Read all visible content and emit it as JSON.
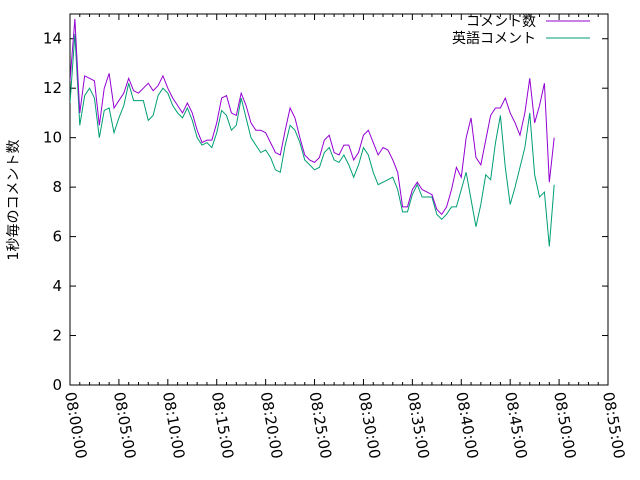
{
  "chart_data": {
    "type": "line",
    "xlabel": "",
    "ylabel": "1秒毎のコメント数",
    "xlim": [
      "08:00:00",
      "08:55:00"
    ],
    "ylim": [
      0,
      15
    ],
    "xticks": [
      "08:00:00",
      "08:05:00",
      "08:10:00",
      "08:15:00",
      "08:20:00",
      "08:25:00",
      "08:30:00",
      "08:35:00",
      "08:40:00",
      "08:45:00",
      "08:50:00",
      "08:55:00"
    ],
    "yticks": [
      0,
      2,
      4,
      6,
      8,
      10,
      12,
      14
    ],
    "grid": false,
    "legend_position": "top-right",
    "series": [
      {
        "name": "コメント数",
        "color": "#9400d3",
        "points": [
          [
            "08:00:00",
            12.3
          ],
          [
            "08:00:30",
            14.8
          ],
          [
            "08:01:00",
            11.0
          ],
          [
            "08:01:30",
            12.5
          ],
          [
            "08:02:00",
            12.4
          ],
          [
            "08:02:30",
            12.3
          ],
          [
            "08:03:00",
            10.5
          ],
          [
            "08:03:30",
            12.0
          ],
          [
            "08:04:00",
            12.6
          ],
          [
            "08:04:30",
            11.2
          ],
          [
            "08:05:00",
            11.5
          ],
          [
            "08:05:30",
            11.8
          ],
          [
            "08:06:00",
            12.4
          ],
          [
            "08:06:30",
            11.9
          ],
          [
            "08:07:00",
            11.8
          ],
          [
            "08:07:30",
            12.0
          ],
          [
            "08:08:00",
            12.2
          ],
          [
            "08:08:30",
            11.9
          ],
          [
            "08:09:00",
            12.1
          ],
          [
            "08:09:30",
            12.5
          ],
          [
            "08:10:00",
            12.0
          ],
          [
            "08:10:30",
            11.6
          ],
          [
            "08:11:00",
            11.3
          ],
          [
            "08:11:30",
            11.0
          ],
          [
            "08:12:00",
            11.4
          ],
          [
            "08:12:30",
            11.0
          ],
          [
            "08:13:00",
            10.3
          ],
          [
            "08:13:30",
            9.8
          ],
          [
            "08:14:00",
            9.9
          ],
          [
            "08:14:30",
            9.9
          ],
          [
            "08:15:00",
            10.6
          ],
          [
            "08:15:30",
            11.6
          ],
          [
            "08:16:00",
            11.7
          ],
          [
            "08:16:30",
            11.0
          ],
          [
            "08:17:00",
            10.9
          ],
          [
            "08:17:30",
            11.8
          ],
          [
            "08:18:00",
            11.3
          ],
          [
            "08:18:30",
            10.6
          ],
          [
            "08:19:00",
            10.3
          ],
          [
            "08:19:30",
            10.3
          ],
          [
            "08:20:00",
            10.2
          ],
          [
            "08:20:30",
            9.8
          ],
          [
            "08:21:00",
            9.4
          ],
          [
            "08:21:30",
            9.3
          ],
          [
            "08:22:00",
            10.3
          ],
          [
            "08:22:30",
            11.2
          ],
          [
            "08:23:00",
            10.8
          ],
          [
            "08:23:30",
            10.0
          ],
          [
            "08:24:00",
            9.3
          ],
          [
            "08:24:30",
            9.1
          ],
          [
            "08:25:00",
            9.0
          ],
          [
            "08:25:30",
            9.2
          ],
          [
            "08:26:00",
            9.9
          ],
          [
            "08:26:30",
            10.1
          ],
          [
            "08:27:00",
            9.4
          ],
          [
            "08:27:30",
            9.3
          ],
          [
            "08:28:00",
            9.7
          ],
          [
            "08:28:30",
            9.7
          ],
          [
            "08:29:00",
            9.1
          ],
          [
            "08:29:30",
            9.4
          ],
          [
            "08:30:00",
            10.1
          ],
          [
            "08:30:30",
            10.3
          ],
          [
            "08:31:00",
            9.8
          ],
          [
            "08:31:30",
            9.3
          ],
          [
            "08:32:00",
            9.6
          ],
          [
            "08:32:30",
            9.5
          ],
          [
            "08:33:00",
            9.1
          ],
          [
            "08:33:30",
            8.6
          ],
          [
            "08:34:00",
            7.2
          ],
          [
            "08:34:30",
            7.2
          ],
          [
            "08:35:00",
            7.9
          ],
          [
            "08:35:30",
            8.2
          ],
          [
            "08:36:00",
            7.9
          ],
          [
            "08:36:30",
            7.8
          ],
          [
            "08:37:00",
            7.7
          ],
          [
            "08:37:30",
            7.1
          ],
          [
            "08:38:00",
            6.9
          ],
          [
            "08:38:30",
            7.2
          ],
          [
            "08:39:00",
            7.9
          ],
          [
            "08:39:30",
            8.8
          ],
          [
            "08:40:00",
            8.4
          ],
          [
            "08:40:30",
            10.0
          ],
          [
            "08:41:00",
            10.8
          ],
          [
            "08:41:30",
            9.2
          ],
          [
            "08:42:00",
            8.9
          ],
          [
            "08:42:30",
            9.9
          ],
          [
            "08:43:00",
            10.9
          ],
          [
            "08:43:30",
            11.2
          ],
          [
            "08:44:00",
            11.2
          ],
          [
            "08:44:30",
            11.6
          ],
          [
            "08:45:00",
            11.0
          ],
          [
            "08:45:30",
            10.6
          ],
          [
            "08:46:00",
            10.1
          ],
          [
            "08:46:30",
            11.0
          ],
          [
            "08:47:00",
            12.4
          ],
          [
            "08:47:30",
            10.6
          ],
          [
            "08:48:00",
            11.3
          ],
          [
            "08:48:30",
            12.2
          ],
          [
            "08:49:00",
            8.2
          ],
          [
            "08:49:30",
            10.0
          ]
        ]
      },
      {
        "name": "英語コメント",
        "color": "#009e73",
        "points": [
          [
            "08:00:00",
            11.4
          ],
          [
            "08:00:30",
            14.2
          ],
          [
            "08:01:00",
            10.5
          ],
          [
            "08:01:30",
            11.7
          ],
          [
            "08:02:00",
            12.0
          ],
          [
            "08:02:30",
            11.6
          ],
          [
            "08:03:00",
            10.0
          ],
          [
            "08:03:30",
            11.1
          ],
          [
            "08:04:00",
            11.2
          ],
          [
            "08:04:30",
            10.2
          ],
          [
            "08:05:00",
            10.8
          ],
          [
            "08:05:30",
            11.3
          ],
          [
            "08:06:00",
            12.2
          ],
          [
            "08:06:30",
            11.5
          ],
          [
            "08:07:00",
            11.5
          ],
          [
            "08:07:30",
            11.5
          ],
          [
            "08:08:00",
            10.7
          ],
          [
            "08:08:30",
            10.9
          ],
          [
            "08:09:00",
            11.7
          ],
          [
            "08:09:30",
            12.0
          ],
          [
            "08:10:00",
            11.8
          ],
          [
            "08:10:30",
            11.3
          ],
          [
            "08:11:00",
            11.0
          ],
          [
            "08:11:30",
            10.8
          ],
          [
            "08:12:00",
            11.2
          ],
          [
            "08:12:30",
            10.7
          ],
          [
            "08:13:00",
            10.0
          ],
          [
            "08:13:30",
            9.7
          ],
          [
            "08:14:00",
            9.8
          ],
          [
            "08:14:30",
            9.6
          ],
          [
            "08:15:00",
            10.2
          ],
          [
            "08:15:30",
            11.1
          ],
          [
            "08:16:00",
            10.9
          ],
          [
            "08:16:30",
            10.3
          ],
          [
            "08:17:00",
            10.5
          ],
          [
            "08:17:30",
            11.6
          ],
          [
            "08:18:00",
            10.8
          ],
          [
            "08:18:30",
            10.0
          ],
          [
            "08:19:00",
            9.7
          ],
          [
            "08:19:30",
            9.4
          ],
          [
            "08:20:00",
            9.5
          ],
          [
            "08:20:30",
            9.2
          ],
          [
            "08:21:00",
            8.7
          ],
          [
            "08:21:30",
            8.6
          ],
          [
            "08:22:00",
            9.7
          ],
          [
            "08:22:30",
            10.5
          ],
          [
            "08:23:00",
            10.3
          ],
          [
            "08:23:30",
            9.8
          ],
          [
            "08:24:00",
            9.1
          ],
          [
            "08:24:30",
            8.9
          ],
          [
            "08:25:00",
            8.7
          ],
          [
            "08:25:30",
            8.8
          ],
          [
            "08:26:00",
            9.4
          ],
          [
            "08:26:30",
            9.6
          ],
          [
            "08:27:00",
            9.1
          ],
          [
            "08:27:30",
            9.0
          ],
          [
            "08:28:00",
            9.3
          ],
          [
            "08:28:30",
            8.9
          ],
          [
            "08:29:00",
            8.4
          ],
          [
            "08:29:30",
            8.9
          ],
          [
            "08:30:00",
            9.6
          ],
          [
            "08:30:30",
            9.3
          ],
          [
            "08:31:00",
            8.6
          ],
          [
            "08:31:30",
            8.1
          ],
          [
            "08:32:00",
            8.2
          ],
          [
            "08:32:30",
            8.3
          ],
          [
            "08:33:00",
            8.4
          ],
          [
            "08:33:30",
            7.9
          ],
          [
            "08:34:00",
            7.0
          ],
          [
            "08:34:30",
            7.0
          ],
          [
            "08:35:00",
            7.7
          ],
          [
            "08:35:30",
            8.1
          ],
          [
            "08:36:00",
            7.6
          ],
          [
            "08:36:30",
            7.6
          ],
          [
            "08:37:00",
            7.6
          ],
          [
            "08:37:30",
            6.9
          ],
          [
            "08:38:00",
            6.7
          ],
          [
            "08:38:30",
            6.9
          ],
          [
            "08:39:00",
            7.2
          ],
          [
            "08:39:30",
            7.2
          ],
          [
            "08:40:00",
            7.9
          ],
          [
            "08:40:30",
            8.6
          ],
          [
            "08:41:00",
            7.5
          ],
          [
            "08:41:30",
            6.4
          ],
          [
            "08:42:00",
            7.3
          ],
          [
            "08:42:30",
            8.5
          ],
          [
            "08:43:00",
            8.3
          ],
          [
            "08:43:30",
            9.8
          ],
          [
            "08:44:00",
            10.9
          ],
          [
            "08:44:30",
            8.8
          ],
          [
            "08:45:00",
            7.3
          ],
          [
            "08:45:30",
            8.0
          ],
          [
            "08:46:00",
            8.8
          ],
          [
            "08:46:30",
            9.6
          ],
          [
            "08:47:00",
            11.0
          ],
          [
            "08:47:30",
            8.5
          ],
          [
            "08:48:00",
            7.6
          ],
          [
            "08:48:30",
            7.8
          ],
          [
            "08:49:00",
            5.6
          ],
          [
            "08:49:30",
            8.1
          ]
        ]
      }
    ]
  }
}
